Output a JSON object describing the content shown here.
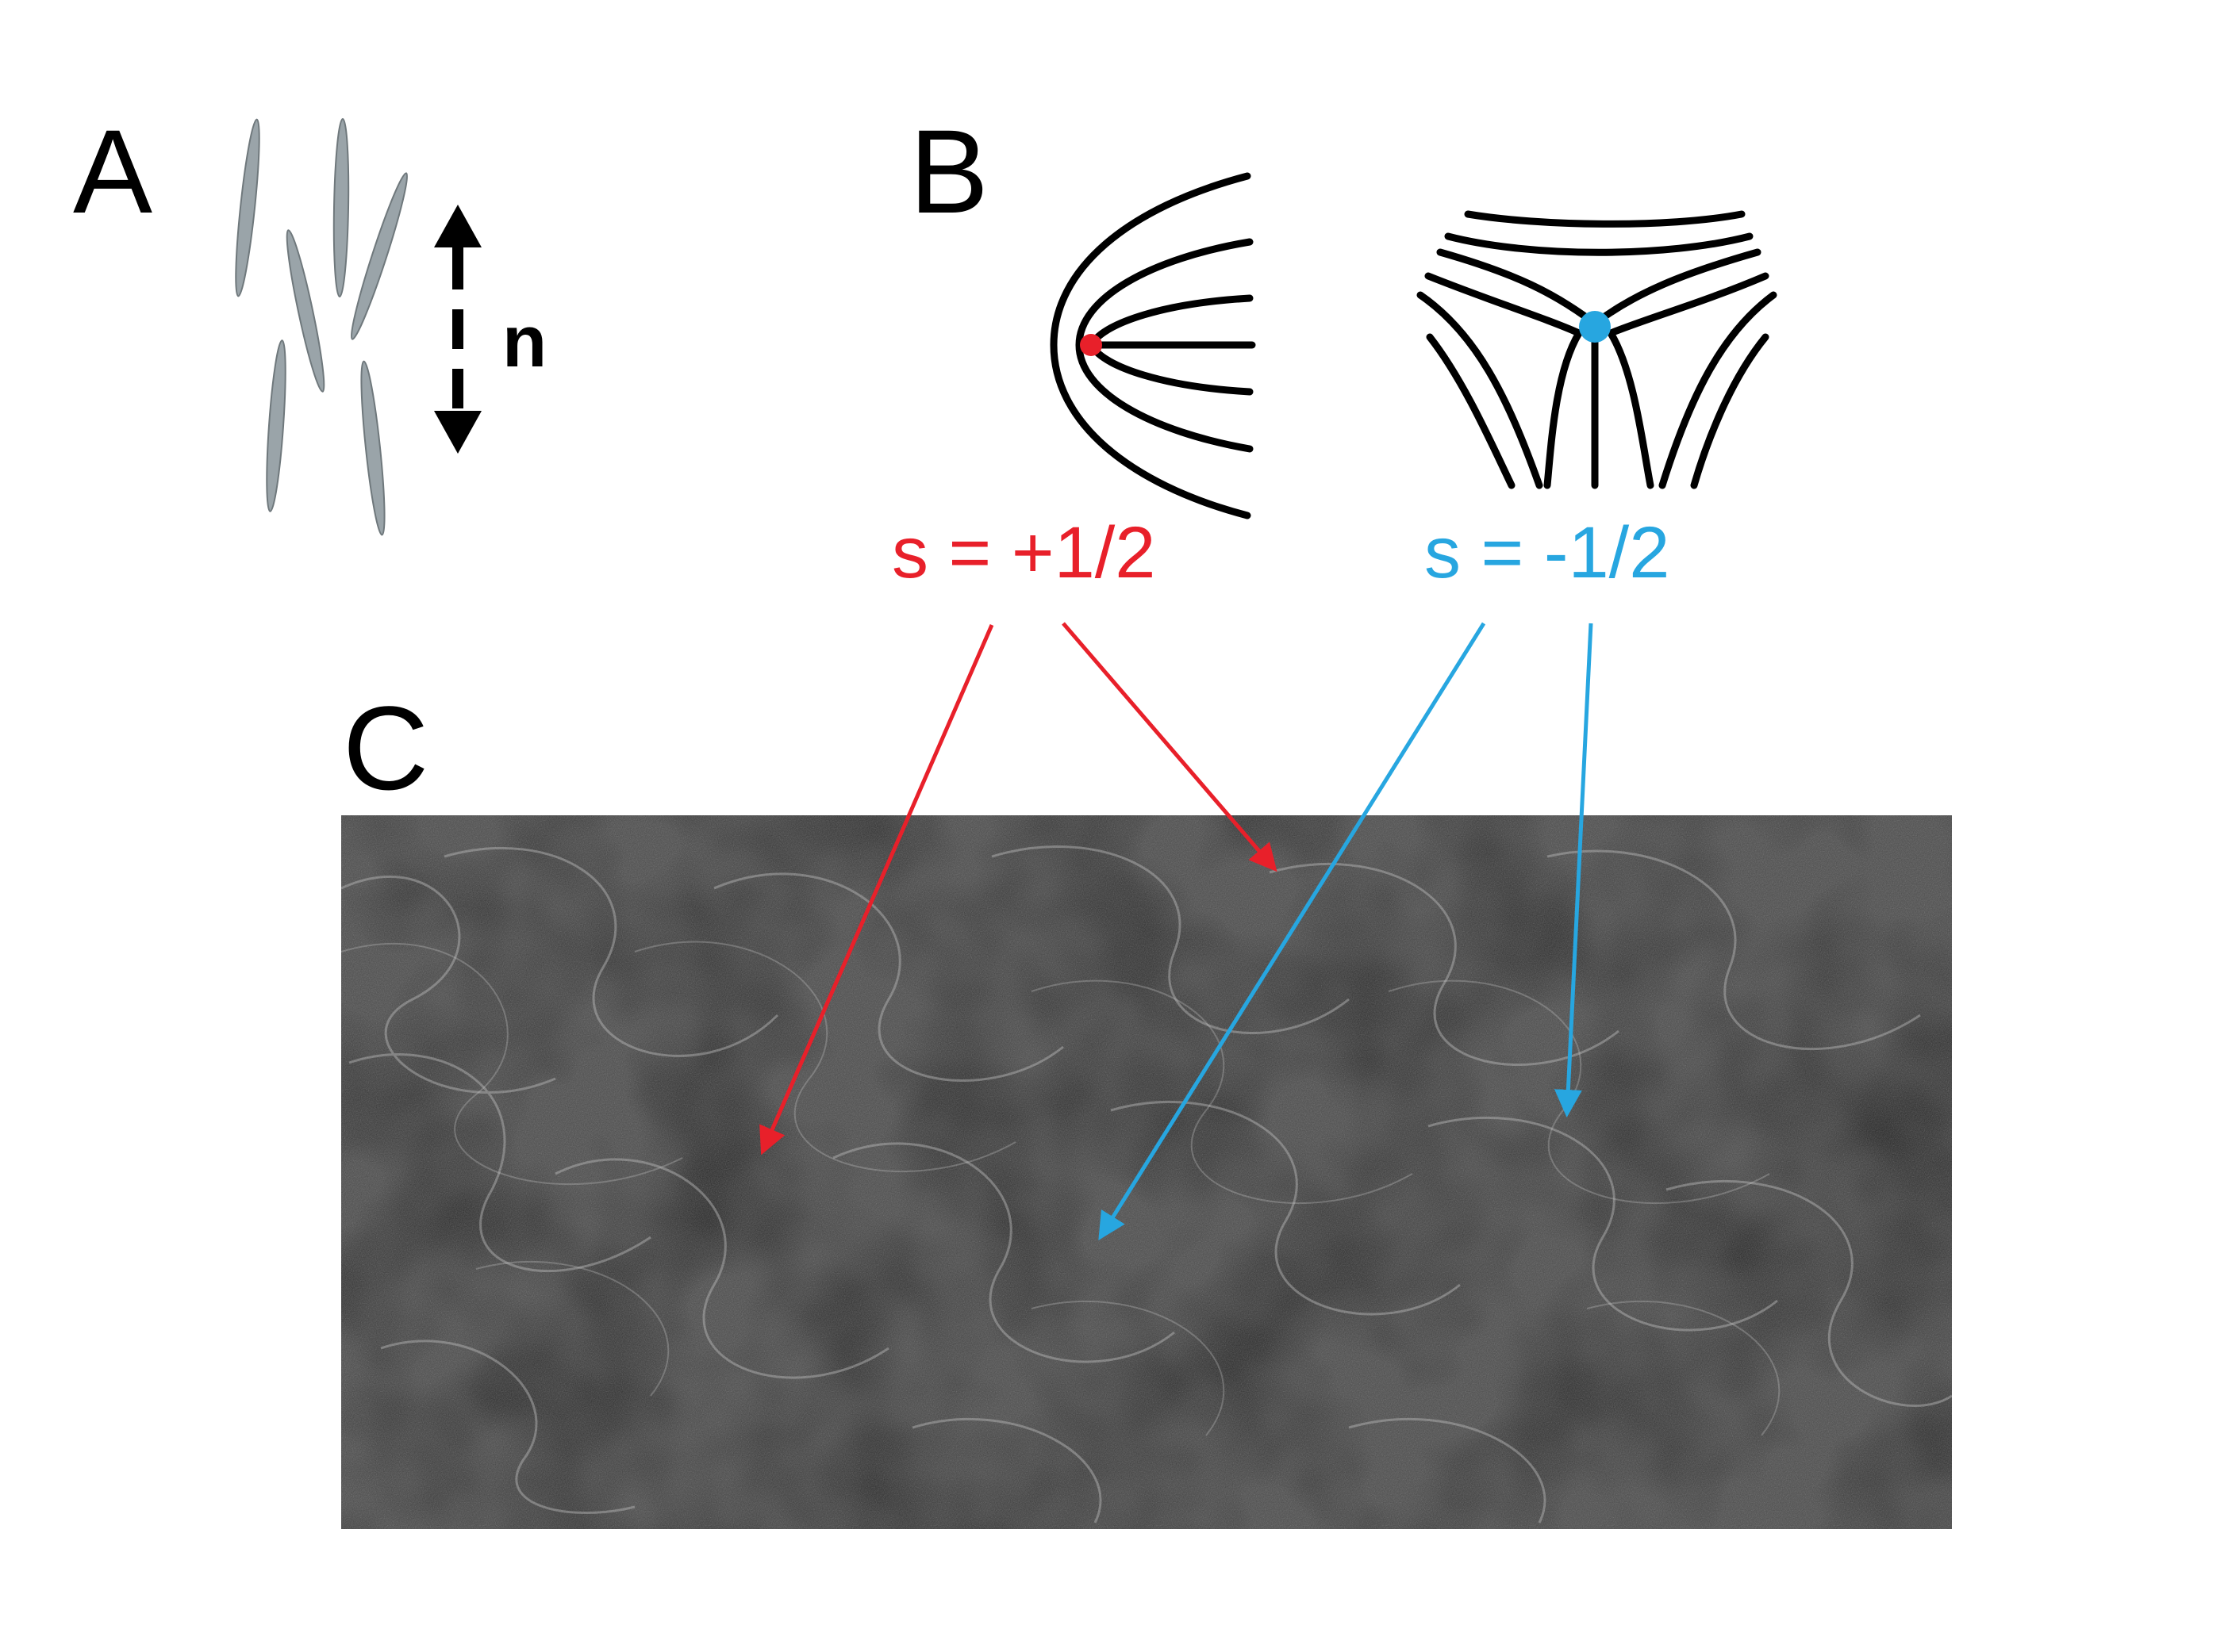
{
  "panels": {
    "a": {
      "label": "A",
      "director_label": "n",
      "rod_color": "#9aa4a9"
    },
    "b": {
      "label": "B",
      "defect_plus": {
        "charge_label": "s = +1/2",
        "color": "#e8202a"
      },
      "defect_minus": {
        "charge_label": "s = -1/2",
        "color": "#27a6e0"
      }
    },
    "c": {
      "label": "C",
      "image_description_icon": "microscopy-texture-icon"
    }
  },
  "colors": {
    "plus_defect": "#e8202a",
    "minus_defect": "#27a6e0",
    "line": "#000000"
  }
}
